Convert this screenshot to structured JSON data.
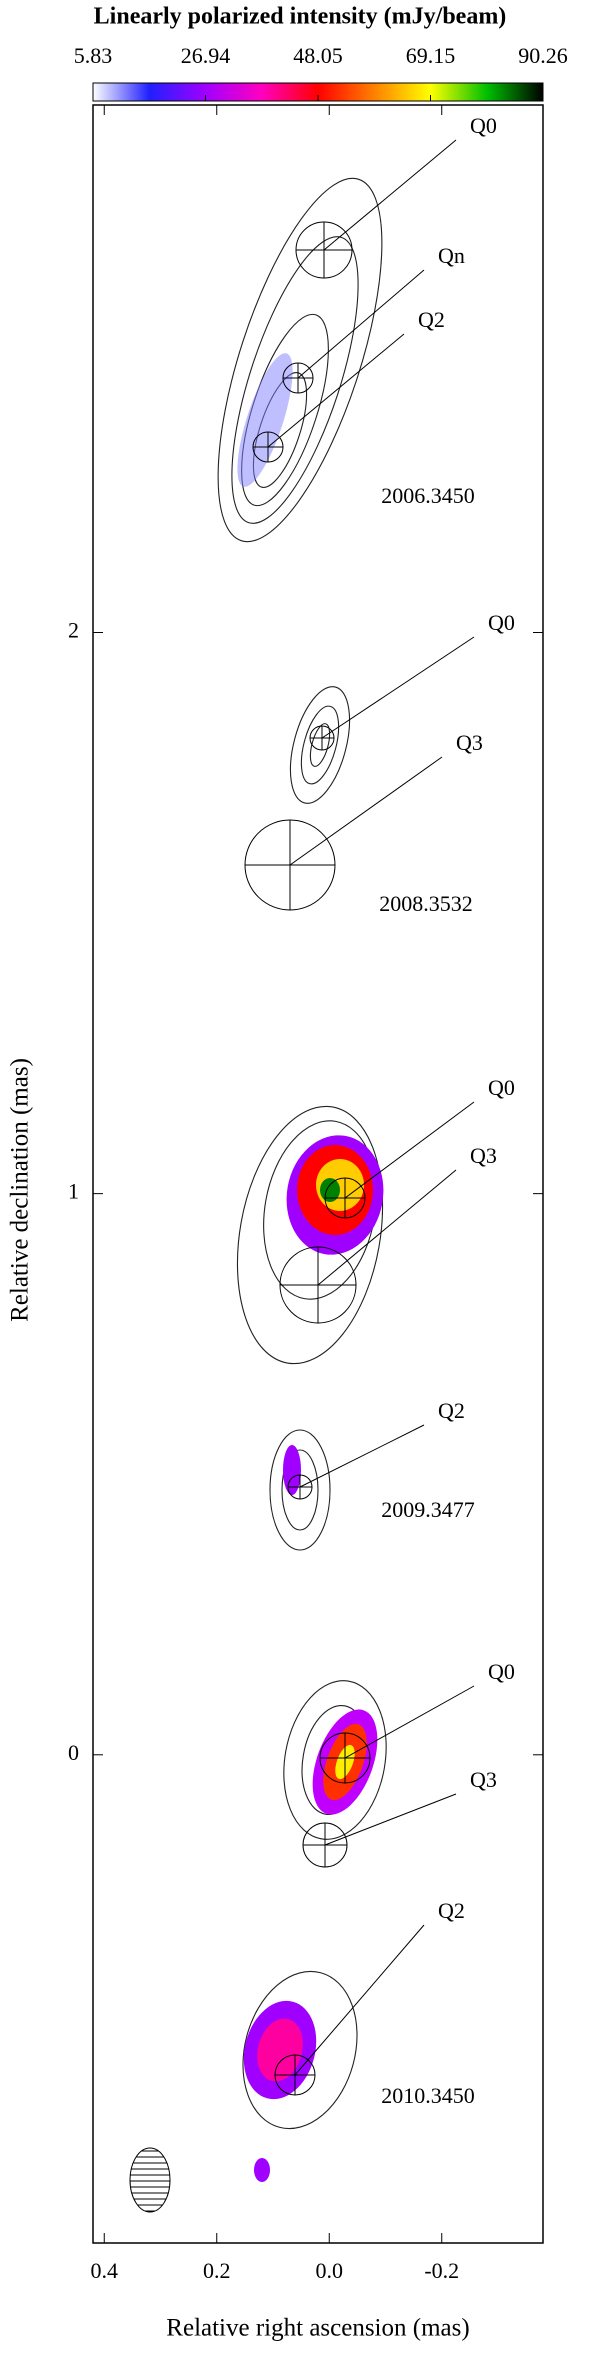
{
  "chart_data": {
    "type": "contour-map",
    "title": "Linearly polarized intensity (mJy/beam)",
    "colorbar": {
      "lim": [
        5.83,
        90.26
      ],
      "ticks": [
        5.83,
        26.94,
        48.05,
        69.15,
        90.26
      ],
      "colors": [
        "#ffffff",
        "#2020ff",
        "#a000ff",
        "#ff00c0",
        "#ff0000",
        "#ff8000",
        "#ffff00",
        "#00c000",
        "#000000"
      ]
    },
    "x_label": "Relative  right ascension (mas)",
    "y_label": "Relative declination (mas)",
    "xlim": [
      0.42,
      -0.38
    ],
    "ylim": [
      -0.87,
      2.94
    ],
    "xticks": [
      0.4,
      0.2,
      {
        "value": 0,
        "label": "0.0"
      },
      -0.2
    ],
    "yticks": [
      0,
      1,
      2
    ],
    "annotations": [
      "Q0",
      "Qn",
      "Q2",
      "Q0",
      "Q3",
      "Q0",
      "Q3",
      "Q2",
      "Q0",
      "Q3",
      "Q2"
    ],
    "epochs": [
      "2006.3450",
      "2008.3532",
      "2009.3477",
      "2010.3450"
    ]
  }
}
